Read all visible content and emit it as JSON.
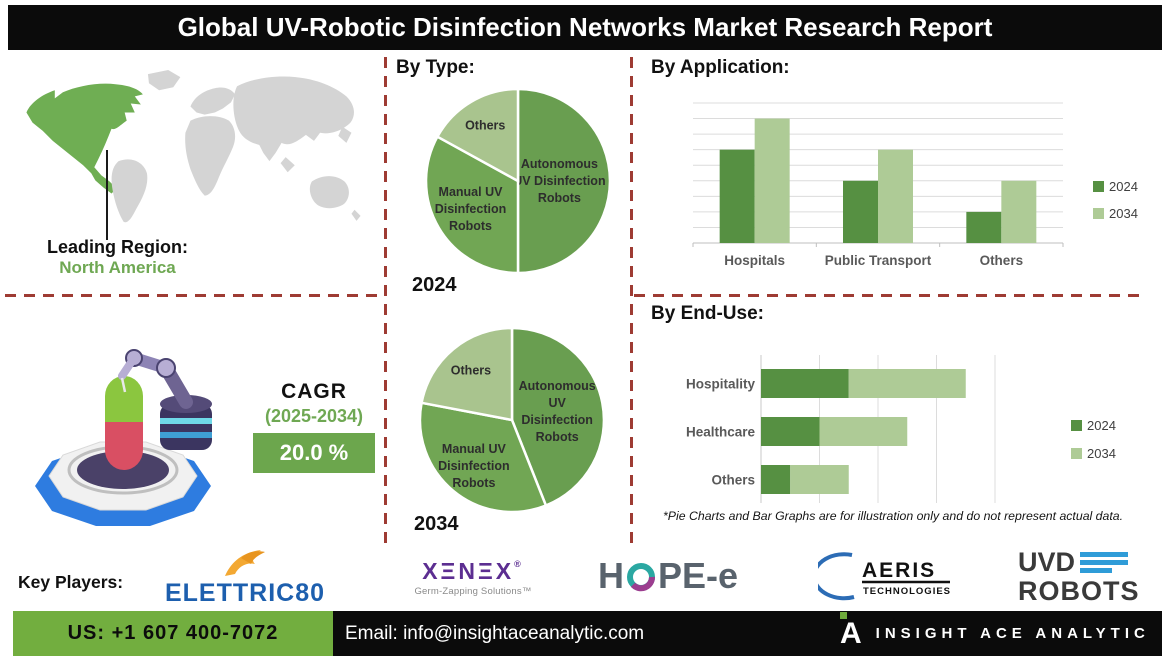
{
  "title": "Global UV-Robotic Disinfection Networks Market Research Report",
  "leading_region": {
    "label": "Leading Region:",
    "value": "North America"
  },
  "sections": {
    "by_type": {
      "heading": "By Type:",
      "caption_2024": "2024",
      "caption_2034": "2034"
    },
    "by_application": {
      "heading": "By Application:"
    },
    "by_end_use": {
      "heading": "By End-Use:"
    }
  },
  "cagr": {
    "label": "CAGR",
    "period": "(2025-2034)",
    "value": "20.0 %"
  },
  "footnote": "*Pie Charts and Bar Graphs are for illustration only and do not represent actual data.",
  "key_players": {
    "label": "Key Players:",
    "elettric80": {
      "text": "ELETTRIC80"
    },
    "xenex": {
      "text": "XΞNΞX",
      "reg": "®",
      "tagline": "Germ-Zapping Solutions™"
    },
    "hope_e": {
      "left": "H",
      "right": "PE-e"
    },
    "aeris": {
      "name": "AERIS",
      "sub": "TECHNOLOGIES"
    },
    "uvd": {
      "line1": "UVD",
      "line2": "ROBOTS"
    }
  },
  "contact": {
    "phone": "US: +1 607 400-7072",
    "email": "Email: info@insightaceanalytic.com",
    "brand_mark": "A",
    "brand": "INSIGHT ACE ANALYTIC"
  },
  "colors": {
    "accent_green": "#6fa853",
    "cagr_box_green": "#6ca64d",
    "bottom_bar_green": "#72ae3f",
    "dashed_divider_red": "#9e3b33",
    "map_highlight_green": "#6fae53",
    "map_gray": "#d4d4d4",
    "series_2024_green": "#569042",
    "series_2034_green": "#aecb96"
  },
  "chart_data": [
    {
      "type": "pie",
      "id": "pie-2024",
      "caption": "2024",
      "slices": [
        {
          "label": "Autonomous UV Disinfection Robots",
          "lines": [
            "Autonomous",
            "UV Disinfection",
            "Robots"
          ],
          "value": 50,
          "color": "#699e50",
          "label_r": 0.45
        },
        {
          "label": "Manual UV Disinfection Robots",
          "lines": [
            "Manual UV",
            "Disinfection",
            "Robots"
          ],
          "value": 33,
          "color": "#71a654",
          "label_r": 0.6
        },
        {
          "label": "Others",
          "lines": [
            "Others"
          ],
          "value": 17,
          "color": "#a9c48e",
          "label_r": 0.7
        }
      ]
    },
    {
      "type": "pie",
      "id": "pie-2034",
      "caption": "2034",
      "slices": [
        {
          "label": "Autonomous UV Disinfection Robots",
          "lines": [
            "Autonomous",
            "UV",
            "Disinfection",
            "Robots"
          ],
          "value": 44,
          "color": "#699e50",
          "label_r": 0.5
        },
        {
          "label": "Manual UV Disinfection Robots",
          "lines": [
            "Manual UV",
            "Disinfection",
            "Robots"
          ],
          "value": 34,
          "color": "#71a654",
          "label_r": 0.65
        },
        {
          "label": "Others",
          "lines": [
            "Others"
          ],
          "value": 22,
          "color": "#a9c48e",
          "label_r": 0.7
        }
      ]
    },
    {
      "type": "grouped_bar",
      "id": "by-application",
      "title": "By Application:",
      "categories": [
        "Hospitals",
        "Public Transport",
        "Others"
      ],
      "series": [
        {
          "name": "2024",
          "color": "#569042",
          "values": [
            6,
            4,
            2
          ]
        },
        {
          "name": "2034",
          "color": "#aecb96",
          "values": [
            8,
            6,
            4
          ]
        }
      ],
      "ylim": [
        0,
        9
      ],
      "gridlines": true,
      "legend_position": "right"
    },
    {
      "type": "stacked_hbar",
      "id": "by-end-use",
      "title": "By End-Use:",
      "categories": [
        "Hospitality",
        "Healthcare",
        "Others"
      ],
      "series": [
        {
          "name": "2024",
          "color": "#569042",
          "values": [
            1.5,
            1.0,
            0.5
          ]
        },
        {
          "name": "2034",
          "color": "#aecb96",
          "values": [
            2.0,
            1.5,
            1.0
          ]
        }
      ],
      "xlim": [
        0,
        4
      ],
      "gridlines": true,
      "legend_position": "right"
    }
  ]
}
